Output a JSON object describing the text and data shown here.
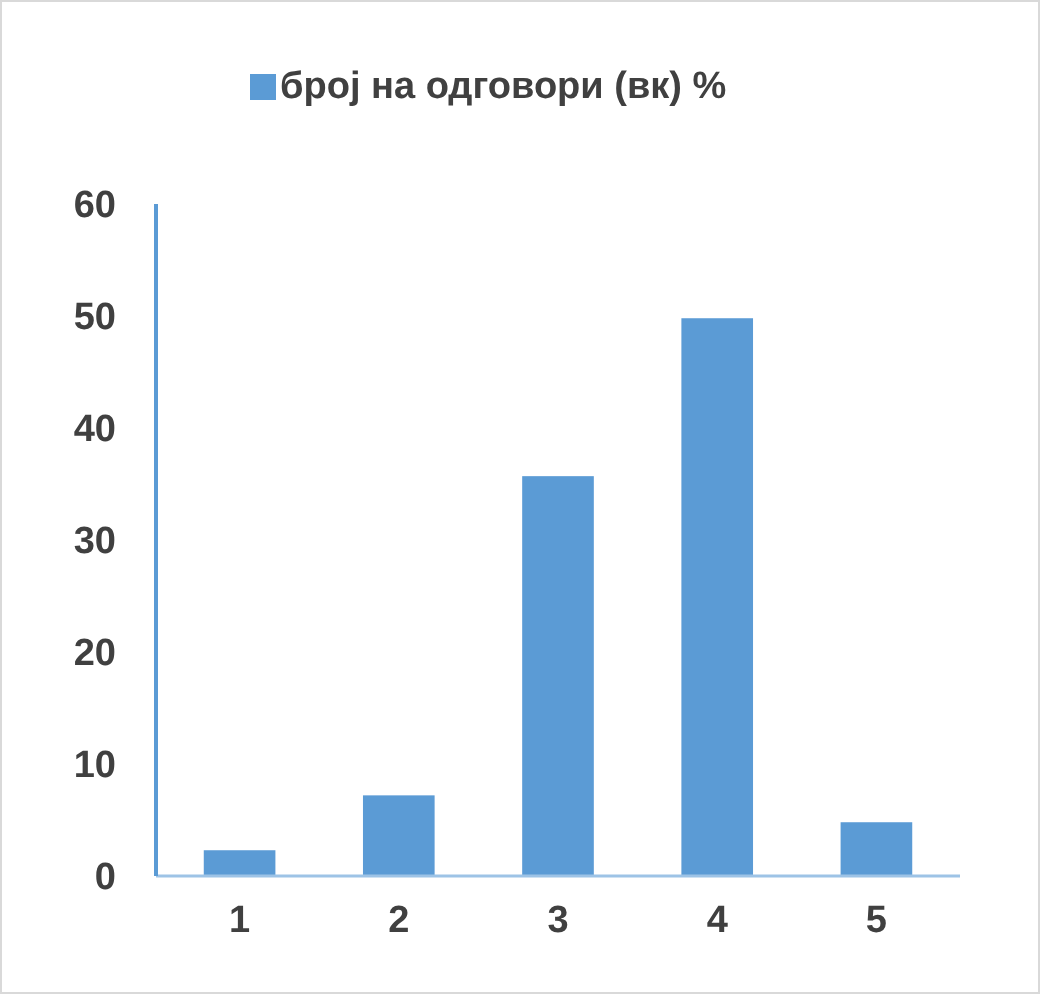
{
  "chart_data": {
    "type": "bar",
    "categories": [
      "1",
      "2",
      "3",
      "4",
      "5"
    ],
    "series": [
      {
        "name": "број на одговори (вк) %",
        "color": "#5b9bd5",
        "values": [
          2.3,
          7.2,
          35.7,
          49.8,
          4.8
        ]
      }
    ],
    "ylim": [
      0,
      60
    ],
    "yticks": [
      0,
      10,
      20,
      30,
      40,
      50,
      60
    ],
    "grid": false,
    "legend": "top"
  }
}
